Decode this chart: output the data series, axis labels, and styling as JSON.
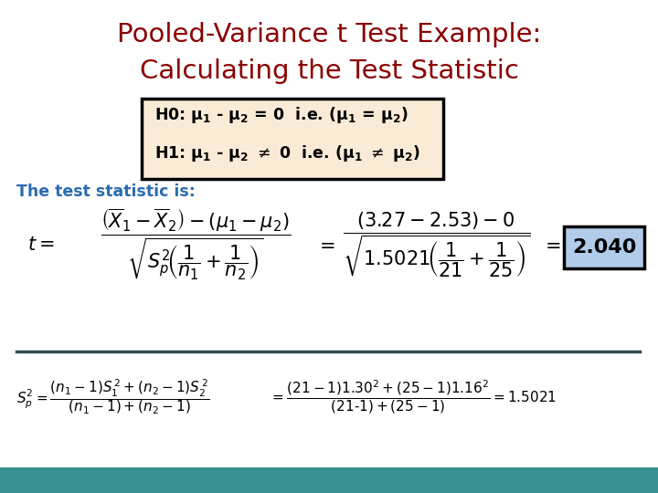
{
  "title_line1": "Pooled-Variance t Test Example:",
  "title_line2": "Calculating the Test Statistic",
  "title_color": "#8B0000",
  "bg_color": "#FFFFFF",
  "bottom_bar_color": "#3A9090",
  "hyp_box_bg": "#FAEBD7",
  "hyp_box_border": "#000000",
  "result_box_bg": "#B0CCE8",
  "result_box_border": "#000000",
  "text_color_blue": "#2B6CB0",
  "text_color_black": "#000000",
  "stat_label": "The test statistic is:",
  "result_value": "2.040"
}
